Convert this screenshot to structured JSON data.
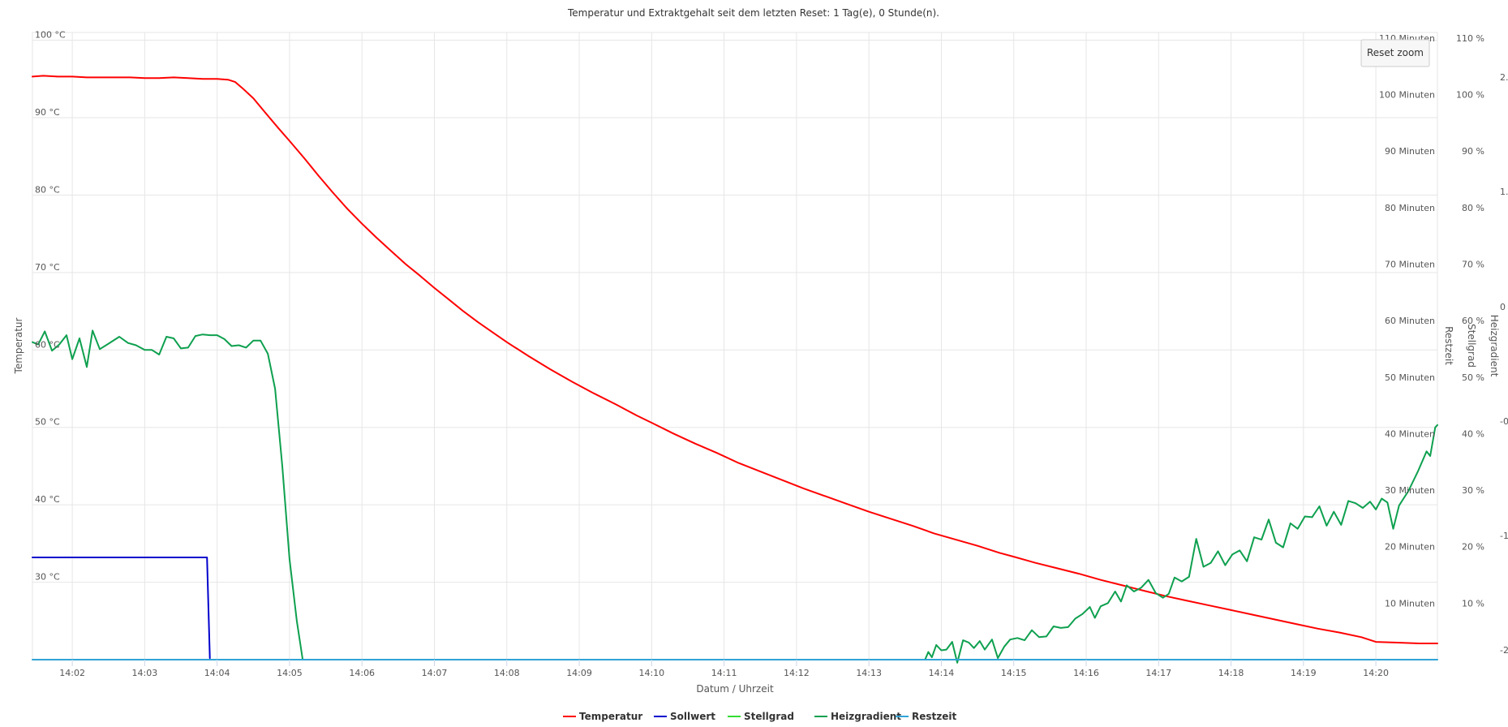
{
  "chart_data": {
    "type": "line",
    "title": "Temperatur und Extraktgehalt seit dem letzten Reset: 1 Tag(e), 0 Stunde(n).",
    "xlabel": "Datum / Uhrzeit",
    "x_ticks": [
      "14:02",
      "14:03",
      "14:04",
      "14:05",
      "14:06",
      "14:07",
      "14:08",
      "14:09",
      "14:10",
      "14:11",
      "14:12",
      "14:13",
      "14:14",
      "14:15",
      "14:16",
      "14:17",
      "14:18",
      "14:19",
      "14:20"
    ],
    "x_range_minutes": [
      841.45,
      860.85
    ],
    "reset_zoom_label": "Reset zoom",
    "axes": {
      "temperature": {
        "title": "Temperatur",
        "range": [
          20,
          101
        ],
        "ticks": [
          "100 °C",
          "90 °C",
          "80 °C",
          "70 °C",
          "60 °C",
          "50 °C",
          "40 °C",
          "30 °C"
        ]
      },
      "restzeit": {
        "title": "Restzeit",
        "range": [
          0,
          111
        ],
        "ticks": [
          "110 Minuten",
          "100 Minuten",
          "90 Minuten",
          "80 Minuten",
          "70 Minuten",
          "60 Minuten",
          "50 Minuten",
          "40 Minuten",
          "30 Minuten",
          "20 Minuten",
          "10 Minuten"
        ]
      },
      "stellgrad": {
        "title": "Stellgrad",
        "range": [
          0,
          111
        ],
        "ticks": [
          "110 %",
          "100 %",
          "90 %",
          "80 %",
          "70 %",
          "60 %",
          "50 %",
          "40 %",
          "30 %",
          "20 %",
          "10 %"
        ]
      },
      "heizgradient": {
        "title": "Heizgradient",
        "ticks_partial": [
          "2.",
          "1.",
          "0",
          "-0.",
          "-1.",
          "-2"
        ]
      }
    },
    "grid": true,
    "legend_position": "bottom-center",
    "series": [
      {
        "name": "Temperatur",
        "color": "#ff0000",
        "axis": "temperature",
        "points": [
          [
            841.45,
            95.3
          ],
          [
            841.6,
            95.4
          ],
          [
            841.8,
            95.3
          ],
          [
            842.0,
            95.3
          ],
          [
            842.2,
            95.2
          ],
          [
            842.4,
            95.2
          ],
          [
            842.6,
            95.2
          ],
          [
            842.8,
            95.2
          ],
          [
            843.0,
            95.1
          ],
          [
            843.2,
            95.1
          ],
          [
            843.4,
            95.2
          ],
          [
            843.6,
            95.1
          ],
          [
            843.8,
            95.0
          ],
          [
            844.0,
            95.0
          ],
          [
            844.15,
            94.9
          ],
          [
            844.25,
            94.6
          ],
          [
            844.35,
            93.8
          ],
          [
            844.5,
            92.5
          ],
          [
            844.65,
            90.8
          ],
          [
            844.85,
            88.6
          ],
          [
            845.0,
            87.0
          ],
          [
            845.2,
            84.8
          ],
          [
            845.4,
            82.5
          ],
          [
            845.6,
            80.3
          ],
          [
            845.8,
            78.2
          ],
          [
            846.0,
            76.3
          ],
          [
            846.2,
            74.5
          ],
          [
            846.4,
            72.8
          ],
          [
            846.6,
            71.1
          ],
          [
            846.8,
            69.6
          ],
          [
            847.0,
            68.0
          ],
          [
            847.2,
            66.5
          ],
          [
            847.4,
            65.0
          ],
          [
            847.6,
            63.6
          ],
          [
            847.8,
            62.3
          ],
          [
            848.0,
            61.0
          ],
          [
            848.3,
            59.2
          ],
          [
            848.6,
            57.5
          ],
          [
            848.9,
            55.9
          ],
          [
            849.2,
            54.4
          ],
          [
            849.5,
            53.0
          ],
          [
            849.8,
            51.5
          ],
          [
            850.0,
            50.6
          ],
          [
            850.3,
            49.2
          ],
          [
            850.6,
            47.9
          ],
          [
            850.9,
            46.7
          ],
          [
            851.2,
            45.4
          ],
          [
            851.5,
            44.3
          ],
          [
            851.8,
            43.2
          ],
          [
            852.1,
            42.1
          ],
          [
            852.4,
            41.1
          ],
          [
            852.7,
            40.1
          ],
          [
            853.0,
            39.1
          ],
          [
            853.3,
            38.2
          ],
          [
            853.6,
            37.3
          ],
          [
            853.9,
            36.3
          ],
          [
            854.2,
            35.5
          ],
          [
            854.5,
            34.7
          ],
          [
            854.8,
            33.8
          ],
          [
            855.0,
            33.3
          ],
          [
            855.3,
            32.5
          ],
          [
            855.6,
            31.8
          ],
          [
            855.9,
            31.1
          ],
          [
            856.2,
            30.3
          ],
          [
            856.5,
            29.6
          ],
          [
            856.8,
            28.9
          ],
          [
            857.1,
            28.2
          ],
          [
            857.4,
            27.6
          ],
          [
            857.7,
            27.0
          ],
          [
            858.0,
            26.4
          ],
          [
            858.3,
            25.8
          ],
          [
            858.6,
            25.2
          ],
          [
            858.9,
            24.6
          ],
          [
            859.2,
            24.0
          ],
          [
            859.5,
            23.5
          ],
          [
            859.8,
            22.9
          ],
          [
            860.0,
            22.3
          ],
          [
            860.3,
            22.2
          ],
          [
            860.6,
            22.1
          ],
          [
            860.85,
            22.1
          ]
        ]
      },
      {
        "name": "Sollwert",
        "color": "#0000cc",
        "axis": "temperature",
        "points": [
          [
            841.45,
            33.2
          ],
          [
            843.86,
            33.2
          ],
          [
            843.9,
            20.2
          ]
        ]
      },
      {
        "name": "Stellgrad",
        "color": "#33dd33",
        "axis": "stellgrad",
        "points": []
      },
      {
        "name": "Heizgradient",
        "color": "#0ea04f",
        "axis": "temperature",
        "points": [
          [
            841.45,
            61.0
          ],
          [
            841.53,
            60.7
          ],
          [
            841.62,
            62.4
          ],
          [
            841.72,
            59.9
          ],
          [
            841.82,
            60.7
          ],
          [
            841.92,
            61.9
          ],
          [
            842.0,
            58.8
          ],
          [
            842.1,
            61.5
          ],
          [
            842.2,
            57.8
          ],
          [
            842.28,
            62.5
          ],
          [
            842.38,
            60.1
          ],
          [
            842.5,
            60.8
          ],
          [
            842.65,
            61.7
          ],
          [
            842.77,
            60.9
          ],
          [
            842.88,
            60.6
          ],
          [
            843.0,
            60.0
          ],
          [
            843.1,
            60.0
          ],
          [
            843.2,
            59.4
          ],
          [
            843.3,
            61.7
          ],
          [
            843.4,
            61.5
          ],
          [
            843.5,
            60.2
          ],
          [
            843.6,
            60.3
          ],
          [
            843.7,
            61.8
          ],
          [
            843.8,
            62.0
          ],
          [
            843.9,
            61.9
          ],
          [
            844.0,
            61.9
          ],
          [
            844.1,
            61.4
          ],
          [
            844.2,
            60.5
          ],
          [
            844.3,
            60.6
          ],
          [
            844.4,
            60.3
          ],
          [
            844.5,
            61.2
          ],
          [
            844.6,
            61.2
          ],
          [
            844.7,
            59.5
          ],
          [
            844.8,
            55.0
          ],
          [
            844.9,
            45.0
          ],
          [
            845.0,
            33.0
          ],
          [
            845.1,
            25.0
          ],
          [
            845.18,
            20.1
          ]
        ]
      },
      {
        "name": "Heizgradient",
        "color": "#0ea04f",
        "axis": "temperature",
        "hide_in_legend": true,
        "points": [
          [
            853.78,
            20.1
          ],
          [
            853.82,
            21.0
          ],
          [
            853.87,
            20.3
          ],
          [
            853.93,
            21.9
          ],
          [
            854.0,
            21.2
          ],
          [
            854.07,
            21.3
          ],
          [
            854.15,
            22.3
          ],
          [
            854.22,
            19.6
          ],
          [
            854.3,
            22.5
          ],
          [
            854.38,
            22.2
          ],
          [
            854.45,
            21.5
          ],
          [
            854.53,
            22.4
          ],
          [
            854.6,
            21.3
          ],
          [
            854.7,
            22.6
          ],
          [
            854.78,
            20.2
          ],
          [
            854.87,
            21.7
          ],
          [
            854.95,
            22.6
          ],
          [
            855.05,
            22.8
          ],
          [
            855.15,
            22.5
          ],
          [
            855.25,
            23.8
          ],
          [
            855.35,
            22.9
          ],
          [
            855.45,
            23.0
          ],
          [
            855.55,
            24.3
          ],
          [
            855.65,
            24.1
          ],
          [
            855.75,
            24.2
          ],
          [
            855.85,
            25.3
          ],
          [
            855.95,
            25.9
          ],
          [
            856.05,
            26.8
          ],
          [
            856.12,
            25.4
          ],
          [
            856.2,
            26.9
          ],
          [
            856.3,
            27.3
          ],
          [
            856.4,
            28.8
          ],
          [
            856.48,
            27.5
          ],
          [
            856.56,
            29.6
          ],
          [
            856.66,
            28.8
          ],
          [
            856.76,
            29.3
          ],
          [
            856.86,
            30.3
          ],
          [
            856.96,
            28.6
          ],
          [
            857.06,
            28.0
          ],
          [
            857.14,
            28.5
          ],
          [
            857.22,
            30.6
          ],
          [
            857.32,
            30.1
          ],
          [
            857.42,
            30.7
          ],
          [
            857.52,
            35.6
          ],
          [
            857.62,
            32.0
          ],
          [
            857.72,
            32.5
          ],
          [
            857.82,
            34.0
          ],
          [
            857.92,
            32.2
          ],
          [
            858.02,
            33.6
          ],
          [
            858.12,
            34.1
          ],
          [
            858.22,
            32.7
          ],
          [
            858.32,
            35.8
          ],
          [
            858.42,
            35.5
          ],
          [
            858.52,
            38.1
          ],
          [
            858.62,
            35.1
          ],
          [
            858.72,
            34.5
          ],
          [
            858.82,
            37.6
          ],
          [
            858.92,
            36.9
          ],
          [
            859.02,
            38.5
          ],
          [
            859.12,
            38.4
          ],
          [
            859.22,
            39.8
          ],
          [
            859.32,
            37.3
          ],
          [
            859.42,
            39.1
          ],
          [
            859.52,
            37.4
          ],
          [
            859.62,
            40.5
          ],
          [
            859.72,
            40.2
          ],
          [
            859.82,
            39.6
          ],
          [
            859.92,
            40.4
          ],
          [
            860.0,
            39.4
          ],
          [
            860.08,
            40.8
          ],
          [
            860.16,
            40.3
          ],
          [
            860.24,
            36.9
          ],
          [
            860.32,
            39.9
          ],
          [
            860.45,
            41.8
          ],
          [
            860.58,
            44.3
          ],
          [
            860.7,
            46.9
          ],
          [
            860.75,
            46.3
          ],
          [
            860.82,
            50.0
          ],
          [
            860.85,
            50.3
          ]
        ]
      },
      {
        "name": "Restzeit",
        "color": "#30a3d6",
        "axis": "restzeit",
        "points": [
          [
            841.45,
            0
          ],
          [
            860.85,
            0
          ]
        ]
      }
    ],
    "legend": [
      {
        "name": "Temperatur",
        "color": "#ff0000"
      },
      {
        "name": "Sollwert",
        "color": "#0000cc"
      },
      {
        "name": "Stellgrad",
        "color": "#33dd33"
      },
      {
        "name": "Heizgradient",
        "color": "#0ea04f"
      },
      {
        "name": "Restzeit",
        "color": "#30a3d6"
      }
    ]
  }
}
